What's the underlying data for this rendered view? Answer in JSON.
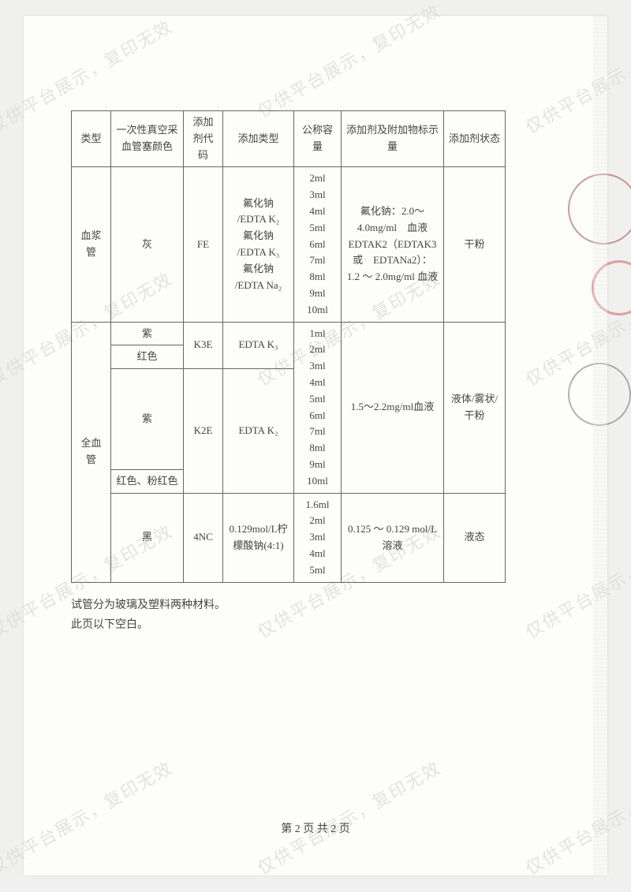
{
  "watermark_text": "仅供平台展示，复印无效",
  "headers": {
    "type": "类型",
    "color": "一次性真空采血管塞颜色",
    "code": "添加剂代码",
    "addtype": "添加类型",
    "volume": "公称容量",
    "amount": "添加剂及附加物标示量",
    "state": "添加剂状态"
  },
  "row1": {
    "type": "血浆管",
    "color": "灰",
    "code": "FE",
    "addtype": "氟化钠\n/EDTA K₂\n氟化钠\n/EDTA K₃\n氟化钠\n/EDTA Na₂",
    "volume": "2ml\n3ml\n4ml\n5ml\n6ml\n7ml\n8ml\n9ml\n10ml",
    "amount": "氟化钠：2.0～4.0mg/ml　血液\nEDTAK2（EDTAK3或　EDTANa2）：\n1.2 ～ 2.0mg/ml 血液",
    "state": "干粉"
  },
  "row2": {
    "type": "全血管",
    "c1": "紫",
    "c2": "红色",
    "c3": "紫",
    "c4": "红色、粉红色",
    "c5": "黑",
    "code_a": "K3E",
    "code_b": "K2E",
    "code_c": "4NC",
    "addtype_a": "EDTA K₃",
    "addtype_b": "EDTA K₂",
    "addtype_c": "0.129mol/L柠檬酸钠(4:1)",
    "vol_a": "1ml\n2ml\n3ml\n4ml\n5ml\n6ml\n7ml\n8ml\n9ml\n10ml",
    "vol_b": "1.6ml\n2ml\n3ml\n4ml\n5ml",
    "amount_a": "1.5～2.2mg/ml血液",
    "amount_b": "0.125 ～ 0.129 mol/L溶液",
    "state_a": "液体/雾状/干粉",
    "state_b": "液态"
  },
  "note1": "试管分为玻璃及塑料两种材料。",
  "note2": "此页以下空白。",
  "pager": "第 2 页 共 2 页"
}
